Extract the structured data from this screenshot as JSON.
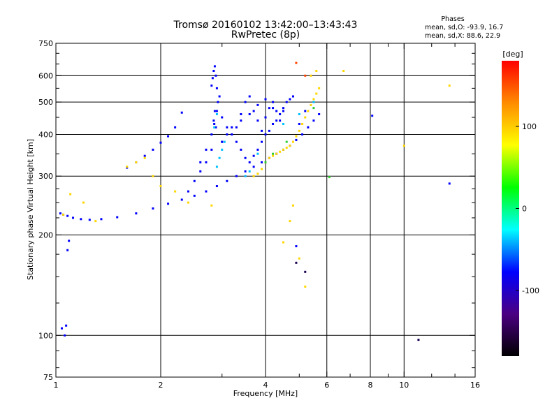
{
  "chart_data": {
    "type": "scatter",
    "title": "Tromsø 20160102 13:42:00–13:43:43",
    "subtitle": "RwPretec (8p)",
    "xlabel": "Frequency [MHz]",
    "ylabel": "Stationary phase Virtual Height [km]",
    "x_scale": "log",
    "y_scale": "log",
    "xlim": [
      1,
      16
    ],
    "ylim": [
      75,
      750
    ],
    "x_ticks": [
      1,
      2,
      4,
      6,
      8,
      10,
      16
    ],
    "x_tick_labels": [
      "1",
      "2",
      "4",
      "6",
      "8",
      "10",
      "16"
    ],
    "y_ticks": [
      75,
      100,
      200,
      300,
      400,
      500,
      600,
      750
    ],
    "y_tick_labels": [
      "75",
      "100",
      "200",
      "300",
      "400",
      "500",
      "600",
      "750"
    ],
    "grid": true,
    "legend": {
      "title": "Phases",
      "lines": [
        "mean, sd,O: -93.9, 16.7",
        "mean, sd,X:  88.6, 22.9"
      ]
    },
    "colorbar": {
      "label": "[deg]",
      "ticks": [
        100,
        0,
        -100
      ],
      "tick_labels": [
        "100",
        "0",
        "-100"
      ],
      "range": [
        -180,
        180
      ],
      "colors": [
        "#000000",
        "#4b0082",
        "#0000ff",
        "#00ffff",
        "#00ff00",
        "#ffff00",
        "#ff8c00",
        "#ff0000"
      ]
    },
    "series": [
      {
        "color": "#0000ff",
        "x": [
          1.03,
          1.05,
          1.08,
          1.12,
          1.18,
          1.25,
          1.35,
          1.5,
          1.7,
          1.9,
          2.1,
          2.3,
          2.5,
          2.7,
          2.9,
          3.1,
          3.3,
          3.5,
          3.7,
          3.9,
          4.1,
          4.3,
          4.5,
          4.7,
          4.9,
          5.1,
          5.3,
          5.5,
          5.7,
          1.04,
          1.06,
          1.07,
          1.08,
          1.09,
          1.6,
          1.7,
          1.8,
          1.9,
          2.0,
          2.1,
          2.2,
          2.3,
          2.6,
          2.7,
          2.8,
          2.85,
          2.9,
          2.95,
          3.0,
          3.1,
          3.2,
          3.3,
          3.4,
          3.5,
          3.6,
          3.7,
          3.8,
          3.9,
          4.0,
          4.1,
          4.2,
          4.3,
          4.4,
          4.5,
          4.6,
          4.7,
          4.8,
          2.8,
          2.82,
          2.84,
          2.86,
          2.88,
          2.9,
          2.92,
          2.86,
          2.84,
          2.88,
          3.3,
          3.4,
          3.5,
          3.6,
          3.7,
          3.8,
          3.9,
          4.0,
          4.1,
          4.2,
          4.3,
          4.4,
          3.0,
          3.1,
          3.2,
          3.4,
          3.6,
          3.8,
          4.0,
          4.2,
          4.5,
          5.0,
          5.2,
          2.4,
          2.5,
          2.6,
          2.7,
          2.8,
          3.0,
          3.2,
          4.9,
          8.1,
          13.5
        ],
        "y": [
          232,
          230,
          228,
          225,
          223,
          222,
          223,
          226,
          232,
          240,
          248,
          255,
          262,
          270,
          280,
          290,
          300,
          310,
          320,
          330,
          340,
          350,
          360,
          370,
          385,
          400,
          420,
          440,
          460,
          105,
          100,
          107,
          180,
          192,
          318,
          330,
          345,
          360,
          378,
          395,
          420,
          465,
          330,
          360,
          400,
          430,
          470,
          520,
          450,
          420,
          400,
          380,
          360,
          340,
          330,
          345,
          360,
          380,
          400,
          410,
          430,
          440,
          460,
          480,
          500,
          510,
          520,
          560,
          590,
          620,
          640,
          600,
          550,
          500,
          470,
          440,
          420,
          420,
          460,
          500,
          520,
          470,
          440,
          410,
          450,
          480,
          500,
          470,
          440,
          380,
          400,
          420,
          440,
          460,
          490,
          510,
          480,
          470,
          430,
          470,
          270,
          290,
          310,
          330,
          360,
          380,
          400,
          185,
          455,
          285
        ]
      },
      {
        "color": "#ffd700",
        "x": [
          1.05,
          1.1,
          1.2,
          1.3,
          1.6,
          1.7,
          1.8,
          1.9,
          2.0,
          2.2,
          2.4,
          2.8,
          3.7,
          3.8,
          3.9,
          4.0,
          4.1,
          4.2,
          4.3,
          4.4,
          4.5,
          4.6,
          4.7,
          4.8,
          4.9,
          5.0,
          5.1,
          5.2,
          5.3,
          5.4,
          5.5,
          5.6,
          5.7,
          4.5,
          4.7,
          4.8,
          5.0,
          5.2,
          5.4,
          5.6,
          6.7,
          10.0,
          13.5
        ],
        "y": [
          230,
          265,
          250,
          220,
          320,
          330,
          340,
          300,
          280,
          270,
          250,
          245,
          300,
          305,
          315,
          330,
          340,
          345,
          350,
          355,
          360,
          365,
          370,
          380,
          395,
          410,
          430,
          450,
          470,
          490,
          510,
          530,
          550,
          190,
          220,
          245,
          170,
          140,
          600,
          620,
          620,
          370,
          560
        ]
      },
      {
        "color": "#00c0ff",
        "x": [
          2.9,
          2.95,
          3.0,
          3.05,
          2.85,
          2.9,
          3.5,
          3.6,
          3.8,
          4.5,
          5.0,
          5.5
        ],
        "y": [
          320,
          340,
          360,
          380,
          420,
          460,
          300,
          310,
          350,
          430,
          460,
          500
        ]
      },
      {
        "color": "#32cd32",
        "x": [
          4.0,
          4.2,
          4.6,
          5.5,
          6.1
        ],
        "y": [
          330,
          350,
          380,
          480,
          298
        ]
      },
      {
        "color": "#ff4500",
        "x": [
          4.9,
          5.2
        ],
        "y": [
          655,
          600
        ]
      },
      {
        "color": "#1a0050",
        "x": [
          11.0,
          4.9,
          5.2
        ],
        "y": [
          97,
          165,
          155
        ]
      }
    ]
  }
}
